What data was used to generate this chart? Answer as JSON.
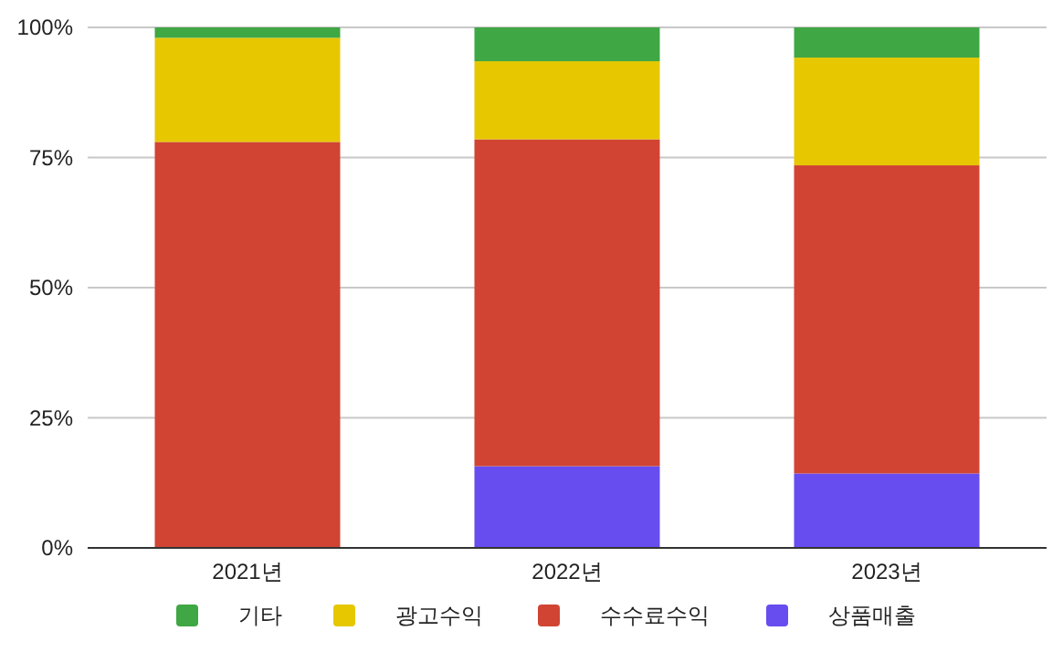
{
  "chart_data": {
    "type": "bar",
    "stacked": true,
    "categories": [
      "2021년",
      "2022년",
      "2023년"
    ],
    "series": [
      {
        "name": "상품매출",
        "color": "#674cf0",
        "values": [
          0,
          15.7,
          14.3
        ]
      },
      {
        "name": "수수료수익",
        "color": "#d14433",
        "values": [
          78,
          62.8,
          59.2
        ]
      },
      {
        "name": "광고수익",
        "color": "#e6c700",
        "values": [
          20,
          15,
          20.7
        ]
      },
      {
        "name": "기타",
        "color": "#3fa744",
        "values": [
          2,
          6.5,
          5.8
        ]
      }
    ],
    "ylim": [
      0,
      100
    ],
    "yticks": [
      {
        "value": 0,
        "label": "0%"
      },
      {
        "value": 25,
        "label": "25%"
      },
      {
        "value": 50,
        "label": "50%"
      },
      {
        "value": 75,
        "label": "75%"
      },
      {
        "value": 100,
        "label": "100%"
      }
    ],
    "grid": "y",
    "legend": "bottom"
  }
}
